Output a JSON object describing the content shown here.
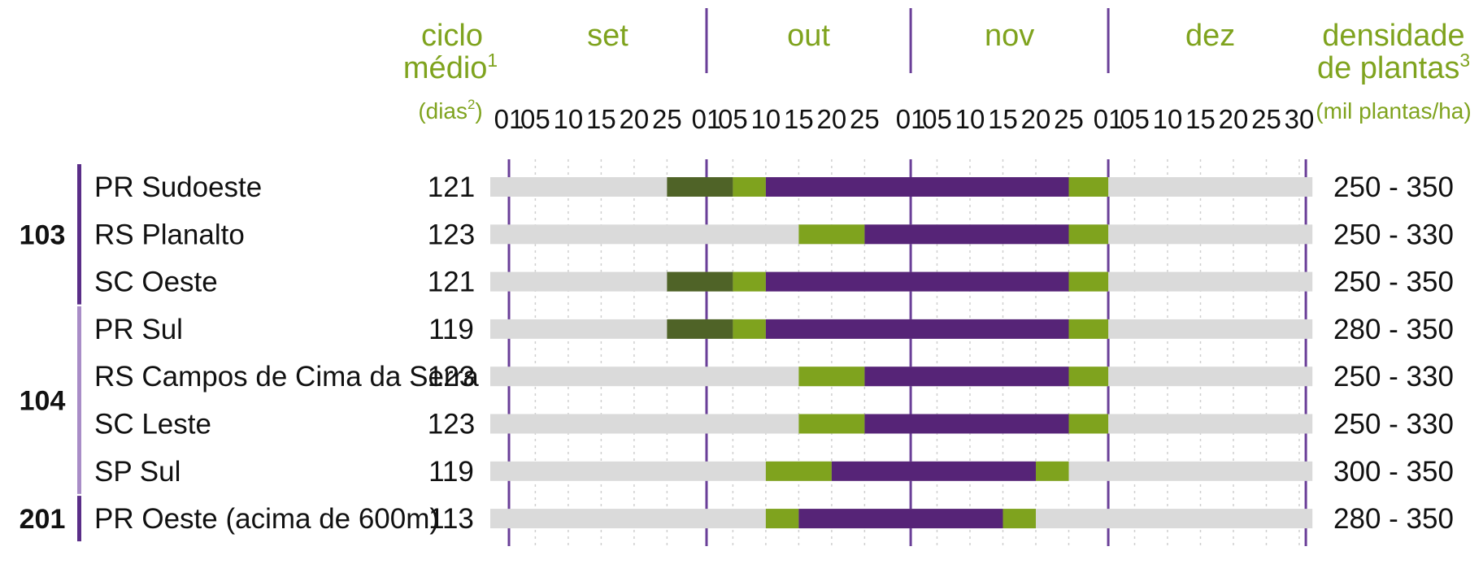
{
  "chart_data": {
    "type": "gantt",
    "header": {
      "cycle_line1": "ciclo",
      "cycle_line2": "médio",
      "cycle_sup": "1",
      "cycle_line3a": "(dias",
      "cycle_sup2": "2",
      "cycle_line3b": ")",
      "density_line1": "densidade",
      "density_line2": "de plantas",
      "density_sup": "3",
      "density_line3": "(mil plantas/ha)"
    },
    "months": [
      "set",
      "out",
      "nov",
      "dez"
    ],
    "tick_labels": [
      [
        "01",
        "05",
        "10",
        "15",
        "20",
        "25"
      ],
      [
        "01",
        "05",
        "10",
        "15",
        "20",
        "25"
      ],
      [
        "01",
        "05",
        "10",
        "15",
        "20",
        "25"
      ],
      [
        "01",
        "05",
        "10",
        "15",
        "20",
        "25",
        "30"
      ]
    ],
    "groups": [
      {
        "label": "103",
        "rows": [
          0,
          2
        ],
        "bar_color": "#5a2e88"
      },
      {
        "label": "104",
        "rows": [
          3,
          6
        ],
        "bar_color": "#a98dc7"
      },
      {
        "label": "201",
        "rows": [
          7,
          7
        ],
        "bar_color": "#5a2e88"
      }
    ],
    "rows": [
      {
        "region": "PR Sudoeste",
        "cycle": "121",
        "density": "250 - 350",
        "segments": [
          {
            "start": "09-25",
            "end": "10-05",
            "color": "#4f6327"
          },
          {
            "start": "10-05",
            "end": "10-10",
            "color": "#7fa31e"
          },
          {
            "start": "10-10",
            "end": "11-25",
            "color": "#562477"
          },
          {
            "start": "11-25",
            "end": "12-01",
            "color": "#7fa31e"
          }
        ]
      },
      {
        "region": "RS Planalto",
        "cycle": "123",
        "density": "250 - 330",
        "segments": [
          {
            "start": "10-15",
            "end": "10-25",
            "color": "#7fa31e"
          },
          {
            "start": "10-25",
            "end": "11-25",
            "color": "#562477"
          },
          {
            "start": "11-25",
            "end": "12-01",
            "color": "#7fa31e"
          }
        ]
      },
      {
        "region": "SC Oeste",
        "cycle": "121",
        "density": "250 - 350",
        "segments": [
          {
            "start": "09-25",
            "end": "10-05",
            "color": "#4f6327"
          },
          {
            "start": "10-05",
            "end": "10-10",
            "color": "#7fa31e"
          },
          {
            "start": "10-10",
            "end": "11-25",
            "color": "#562477"
          },
          {
            "start": "11-25",
            "end": "12-01",
            "color": "#7fa31e"
          }
        ]
      },
      {
        "region": "PR Sul",
        "cycle": "119",
        "density": "280 - 350",
        "segments": [
          {
            "start": "09-25",
            "end": "10-05",
            "color": "#4f6327"
          },
          {
            "start": "10-05",
            "end": "10-10",
            "color": "#7fa31e"
          },
          {
            "start": "10-10",
            "end": "11-25",
            "color": "#562477"
          },
          {
            "start": "11-25",
            "end": "12-01",
            "color": "#7fa31e"
          }
        ]
      },
      {
        "region": "RS Campos de Cima da Serra",
        "cycle": "123",
        "density": "250 - 330",
        "segments": [
          {
            "start": "10-15",
            "end": "10-25",
            "color": "#7fa31e"
          },
          {
            "start": "10-25",
            "end": "11-25",
            "color": "#562477"
          },
          {
            "start": "11-25",
            "end": "12-01",
            "color": "#7fa31e"
          }
        ]
      },
      {
        "region": "SC Leste",
        "cycle": "123",
        "density": "250 - 330",
        "segments": [
          {
            "start": "10-15",
            "end": "10-25",
            "color": "#7fa31e"
          },
          {
            "start": "10-25",
            "end": "11-25",
            "color": "#562477"
          },
          {
            "start": "11-25",
            "end": "12-01",
            "color": "#7fa31e"
          }
        ]
      },
      {
        "region": "SP Sul",
        "cycle": "119",
        "density": "300 - 350",
        "segments": [
          {
            "start": "10-10",
            "end": "10-20",
            "color": "#7fa31e"
          },
          {
            "start": "10-20",
            "end": "11-20",
            "color": "#562477"
          },
          {
            "start": "11-20",
            "end": "11-25",
            "color": "#7fa31e"
          }
        ]
      },
      {
        "region": "PR Oeste (acima de 600m)",
        "cycle": "113",
        "density": "280 - 350",
        "segments": [
          {
            "start": "10-10",
            "end": "10-15",
            "color": "#7fa31e"
          },
          {
            "start": "10-15",
            "end": "11-15",
            "color": "#562477"
          },
          {
            "start": "11-15",
            "end": "11-20",
            "color": "#7fa31e"
          }
        ]
      }
    ],
    "colors": {
      "background_bar": "#dadada",
      "month_divider": "#6a3f98",
      "grid_dotted": "#cfcfcf",
      "header_text": "#7fa31e"
    }
  }
}
